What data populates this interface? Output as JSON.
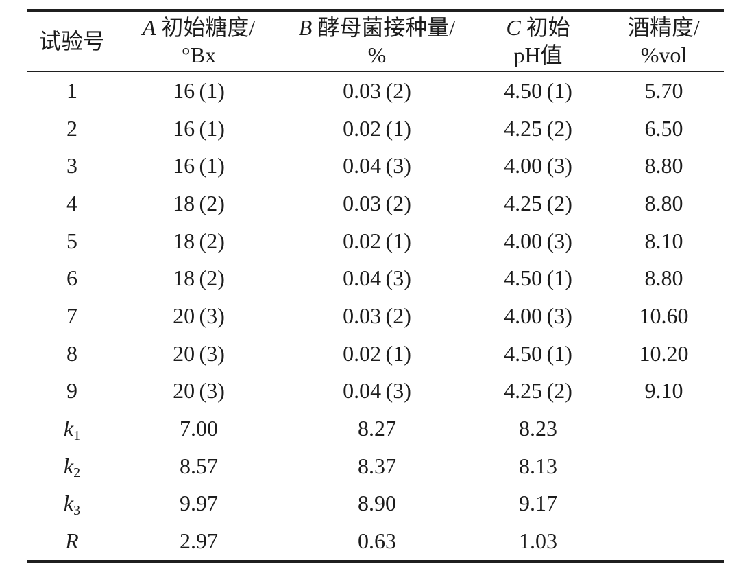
{
  "colors": {
    "background": "#ffffff",
    "text": "#1c1c1c",
    "rule": "#1f1f1f"
  },
  "table": {
    "header": {
      "cells": [
        {
          "italic": "",
          "line1": "试验号",
          "line2": ""
        },
        {
          "italic": "A",
          "line1": " 初始糖度/",
          "line2": "°Bx"
        },
        {
          "italic": "B",
          "line1": " 酵母菌接种量/",
          "line2": "%"
        },
        {
          "italic": "C",
          "line1": " 初始",
          "line2": "pH值"
        },
        {
          "italic": "",
          "line1": "酒精度/",
          "line2": "%vol"
        }
      ]
    },
    "rows": [
      {
        "label": "1",
        "sub": "",
        "italic": false,
        "cells": [
          "16 (1)",
          "0.03 (2)",
          "4.50 (1)",
          "5.70"
        ]
      },
      {
        "label": "2",
        "sub": "",
        "italic": false,
        "cells": [
          "16 (1)",
          "0.02 (1)",
          "4.25 (2)",
          "6.50"
        ]
      },
      {
        "label": "3",
        "sub": "",
        "italic": false,
        "cells": [
          "16 (1)",
          "0.04 (3)",
          "4.00 (3)",
          "8.80"
        ]
      },
      {
        "label": "4",
        "sub": "",
        "italic": false,
        "cells": [
          "18 (2)",
          "0.03 (2)",
          "4.25 (2)",
          "8.80"
        ]
      },
      {
        "label": "5",
        "sub": "",
        "italic": false,
        "cells": [
          "18 (2)",
          "0.02 (1)",
          "4.00 (3)",
          "8.10"
        ]
      },
      {
        "label": "6",
        "sub": "",
        "italic": false,
        "cells": [
          "18 (2)",
          "0.04 (3)",
          "4.50 (1)",
          "8.80"
        ]
      },
      {
        "label": "7",
        "sub": "",
        "italic": false,
        "cells": [
          "20 (3)",
          "0.03 (2)",
          "4.00 (3)",
          "10.60"
        ]
      },
      {
        "label": "8",
        "sub": "",
        "italic": false,
        "cells": [
          "20 (3)",
          "0.02 (1)",
          "4.50 (1)",
          "10.20"
        ]
      },
      {
        "label": "9",
        "sub": "",
        "italic": false,
        "cells": [
          "20 (3)",
          "0.04 (3)",
          "4.25 (2)",
          "9.10"
        ]
      },
      {
        "label": "k",
        "sub": "1",
        "italic": true,
        "cells": [
          "7.00",
          "8.27",
          "8.23",
          ""
        ]
      },
      {
        "label": "k",
        "sub": "2",
        "italic": true,
        "cells": [
          "8.57",
          "8.37",
          "8.13",
          ""
        ]
      },
      {
        "label": "k",
        "sub": "3",
        "italic": true,
        "cells": [
          "9.97",
          "8.90",
          "9.17",
          ""
        ]
      },
      {
        "label": "R",
        "sub": "",
        "italic": true,
        "cells": [
          "2.97",
          "0.63",
          "1.03",
          ""
        ]
      }
    ]
  }
}
